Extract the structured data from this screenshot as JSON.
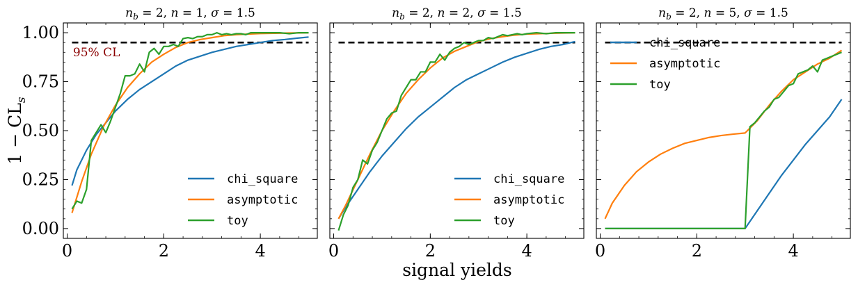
{
  "figure": {
    "ylabel": "1 − CL",
    "ylabel_sub": "s",
    "xlabel": "signal yields",
    "colors": {
      "chi_square": "#1f77b4",
      "asymptotic": "#ff7f0e",
      "toy": "#2ca02c",
      "cl_line": "#000000",
      "cl_label": "#8b0000"
    }
  },
  "chart_data": [
    {
      "type": "line",
      "title": "n_b = 2, n = 1, σ = 1.5",
      "title_parts": {
        "nb": "2",
        "n": "1",
        "sigma": "1.5"
      },
      "xlim": [
        -0.08,
        5.18
      ],
      "ylim": [
        -0.05,
        1.05
      ],
      "xticks": [
        0,
        2,
        4
      ],
      "yticks": [
        0.0,
        0.25,
        0.5,
        0.75,
        1.0
      ],
      "ytick_labels": [
        "0.00",
        "0.25",
        "0.50",
        "0.75",
        "1.00"
      ],
      "show_yticklabels": true,
      "legend": "lower-right",
      "cl_line": {
        "y": 0.95,
        "x": [
          0.1,
          5.0
        ],
        "label": "95% CL"
      },
      "series": [
        {
          "name": "chi_square",
          "x": [
            0.1,
            0.2,
            0.4,
            0.6,
            0.8,
            1.0,
            1.25,
            1.5,
            1.75,
            2.0,
            2.25,
            2.5,
            2.75,
            3.0,
            3.25,
            3.5,
            3.75,
            4.0,
            4.25,
            4.5,
            4.75,
            5.0
          ],
          "y": [
            0.22,
            0.3,
            0.4,
            0.48,
            0.54,
            0.6,
            0.66,
            0.71,
            0.75,
            0.79,
            0.83,
            0.86,
            0.88,
            0.9,
            0.915,
            0.93,
            0.94,
            0.95,
            0.96,
            0.965,
            0.972,
            0.978
          ]
        },
        {
          "name": "asymptotic",
          "x": [
            0.1,
            0.3,
            0.5,
            0.75,
            1.0,
            1.25,
            1.5,
            1.75,
            2.0,
            2.25,
            2.5,
            2.75,
            3.0,
            3.25,
            3.5,
            3.75,
            4.0,
            4.5,
            5.0
          ],
          "y": [
            0.08,
            0.24,
            0.38,
            0.52,
            0.63,
            0.72,
            0.79,
            0.85,
            0.89,
            0.925,
            0.95,
            0.965,
            0.975,
            0.985,
            0.99,
            0.993,
            0.996,
            0.998,
            1.0
          ]
        },
        {
          "name": "toy",
          "x": [
            0.1,
            0.2,
            0.3,
            0.4,
            0.5,
            0.6,
            0.7,
            0.8,
            0.9,
            1.0,
            1.1,
            1.2,
            1.3,
            1.4,
            1.5,
            1.6,
            1.7,
            1.8,
            1.9,
            2.0,
            2.1,
            2.2,
            2.3,
            2.4,
            2.5,
            2.6,
            2.7,
            2.8,
            2.9,
            3.0,
            3.1,
            3.2,
            3.3,
            3.4,
            3.5,
            3.6,
            3.7,
            3.8,
            3.9,
            4.0,
            4.2,
            4.4,
            4.6,
            4.8,
            5.0
          ],
          "y": [
            0.1,
            0.14,
            0.13,
            0.2,
            0.45,
            0.49,
            0.53,
            0.49,
            0.55,
            0.62,
            0.69,
            0.78,
            0.78,
            0.79,
            0.84,
            0.8,
            0.9,
            0.92,
            0.89,
            0.93,
            0.93,
            0.94,
            0.93,
            0.97,
            0.975,
            0.97,
            0.98,
            0.98,
            0.99,
            0.99,
            1.0,
            0.99,
            0.995,
            0.99,
            0.995,
            0.995,
            0.99,
            1.0,
            1.0,
            1.0,
            1.0,
            1.0,
            0.995,
            1.0,
            1.0
          ]
        }
      ]
    },
    {
      "type": "line",
      "title": "n_b = 2, n = 2, σ = 1.5",
      "title_parts": {
        "nb": "2",
        "n": "2",
        "sigma": "1.5"
      },
      "xlim": [
        -0.08,
        5.18
      ],
      "ylim": [
        -0.05,
        1.05
      ],
      "xticks": [
        0,
        2,
        4
      ],
      "yticks": [
        0.0,
        0.25,
        0.5,
        0.75,
        1.0
      ],
      "ytick_labels": [
        "0.00",
        "0.25",
        "0.50",
        "0.75",
        "1.00"
      ],
      "show_yticklabels": false,
      "legend": "lower-right",
      "cl_line": {
        "y": 0.95,
        "x": [
          0.1,
          5.0
        ],
        "label": ""
      },
      "series": [
        {
          "name": "chi_square",
          "x": [
            0.1,
            0.25,
            0.5,
            0.75,
            1.0,
            1.25,
            1.5,
            1.75,
            2.0,
            2.25,
            2.5,
            2.75,
            3.0,
            3.25,
            3.5,
            3.75,
            4.0,
            4.25,
            4.5,
            4.75,
            5.0
          ],
          "y": [
            0.05,
            0.11,
            0.2,
            0.29,
            0.37,
            0.44,
            0.51,
            0.57,
            0.62,
            0.67,
            0.72,
            0.76,
            0.79,
            0.82,
            0.85,
            0.875,
            0.895,
            0.915,
            0.93,
            0.94,
            0.955
          ]
        },
        {
          "name": "asymptotic",
          "x": [
            0.1,
            0.25,
            0.5,
            0.75,
            1.0,
            1.25,
            1.5,
            1.75,
            2.0,
            2.25,
            2.5,
            2.75,
            3.0,
            3.25,
            3.5,
            3.75,
            4.0,
            4.5,
            5.0
          ],
          "y": [
            0.05,
            0.12,
            0.25,
            0.38,
            0.5,
            0.6,
            0.69,
            0.76,
            0.82,
            0.87,
            0.905,
            0.93,
            0.955,
            0.97,
            0.98,
            0.988,
            0.993,
            0.997,
            1.0
          ]
        },
        {
          "name": "toy",
          "x": [
            0.1,
            0.2,
            0.3,
            0.4,
            0.5,
            0.6,
            0.7,
            0.8,
            0.9,
            1.0,
            1.1,
            1.2,
            1.3,
            1.4,
            1.5,
            1.6,
            1.7,
            1.8,
            1.9,
            2.0,
            2.1,
            2.2,
            2.3,
            2.4,
            2.5,
            2.6,
            2.7,
            2.8,
            2.9,
            3.0,
            3.1,
            3.2,
            3.3,
            3.4,
            3.5,
            3.6,
            3.7,
            3.8,
            3.9,
            4.0,
            4.2,
            4.4,
            4.6,
            4.8,
            5.0
          ],
          "y": [
            -0.01,
            0.07,
            0.12,
            0.21,
            0.25,
            0.35,
            0.33,
            0.4,
            0.44,
            0.5,
            0.56,
            0.59,
            0.6,
            0.68,
            0.72,
            0.76,
            0.76,
            0.8,
            0.8,
            0.85,
            0.85,
            0.89,
            0.86,
            0.9,
            0.92,
            0.93,
            0.95,
            0.94,
            0.95,
            0.96,
            0.96,
            0.975,
            0.97,
            0.98,
            0.99,
            0.985,
            0.99,
            0.995,
            0.99,
            0.995,
            1.0,
            0.995,
            1.0,
            1.0,
            1.0
          ]
        }
      ]
    },
    {
      "type": "line",
      "title": "n_b = 2, n = 5, σ = 1.5",
      "title_parts": {
        "nb": "2",
        "n": "5",
        "sigma": "1.5"
      },
      "xlim": [
        -0.08,
        5.18
      ],
      "ylim": [
        -0.05,
        1.05
      ],
      "xticks": [
        0,
        2,
        4
      ],
      "yticks": [
        0.0,
        0.25,
        0.5,
        0.75,
        1.0
      ],
      "ytick_labels": [
        "0.00",
        "0.25",
        "0.50",
        "0.75",
        "1.00"
      ],
      "show_yticklabels": false,
      "legend": "top-left",
      "cl_line": {
        "y": 0.95,
        "x": [
          0.1,
          5.0
        ],
        "label": ""
      },
      "series": [
        {
          "name": "chi_square",
          "x": [
            0.1,
            1.0,
            2.0,
            2.5,
            3.0,
            3.25,
            3.5,
            3.75,
            4.0,
            4.25,
            4.5,
            4.75,
            5.0
          ],
          "y": [
            0.0,
            0.0,
            0.0,
            0.0,
            0.0,
            0.09,
            0.18,
            0.27,
            0.35,
            0.43,
            0.5,
            0.57,
            0.66
          ]
        },
        {
          "name": "asymptotic",
          "x": [
            0.1,
            0.25,
            0.5,
            0.75,
            1.0,
            1.25,
            1.5,
            1.75,
            2.0,
            2.25,
            2.5,
            2.75,
            3.0,
            3.25,
            3.5,
            3.75,
            4.0,
            4.25,
            4.5,
            4.75,
            5.0
          ],
          "y": [
            0.05,
            0.13,
            0.22,
            0.29,
            0.34,
            0.38,
            0.41,
            0.435,
            0.45,
            0.465,
            0.475,
            0.482,
            0.488,
            0.55,
            0.63,
            0.7,
            0.76,
            0.8,
            0.84,
            0.87,
            0.91
          ]
        },
        {
          "name": "toy",
          "x": [
            0.1,
            1.0,
            2.0,
            2.9,
            3.0,
            3.1,
            3.2,
            3.3,
            3.4,
            3.5,
            3.6,
            3.7,
            3.8,
            3.9,
            4.0,
            4.1,
            4.2,
            4.3,
            4.4,
            4.5,
            4.6,
            4.7,
            4.8,
            4.9,
            5.0
          ],
          "y": [
            0.0,
            0.0,
            0.0,
            0.0,
            0.0,
            0.52,
            0.54,
            0.57,
            0.6,
            0.62,
            0.66,
            0.67,
            0.7,
            0.73,
            0.74,
            0.79,
            0.8,
            0.81,
            0.83,
            0.8,
            0.86,
            0.87,
            0.88,
            0.89,
            0.9
          ]
        }
      ]
    }
  ]
}
